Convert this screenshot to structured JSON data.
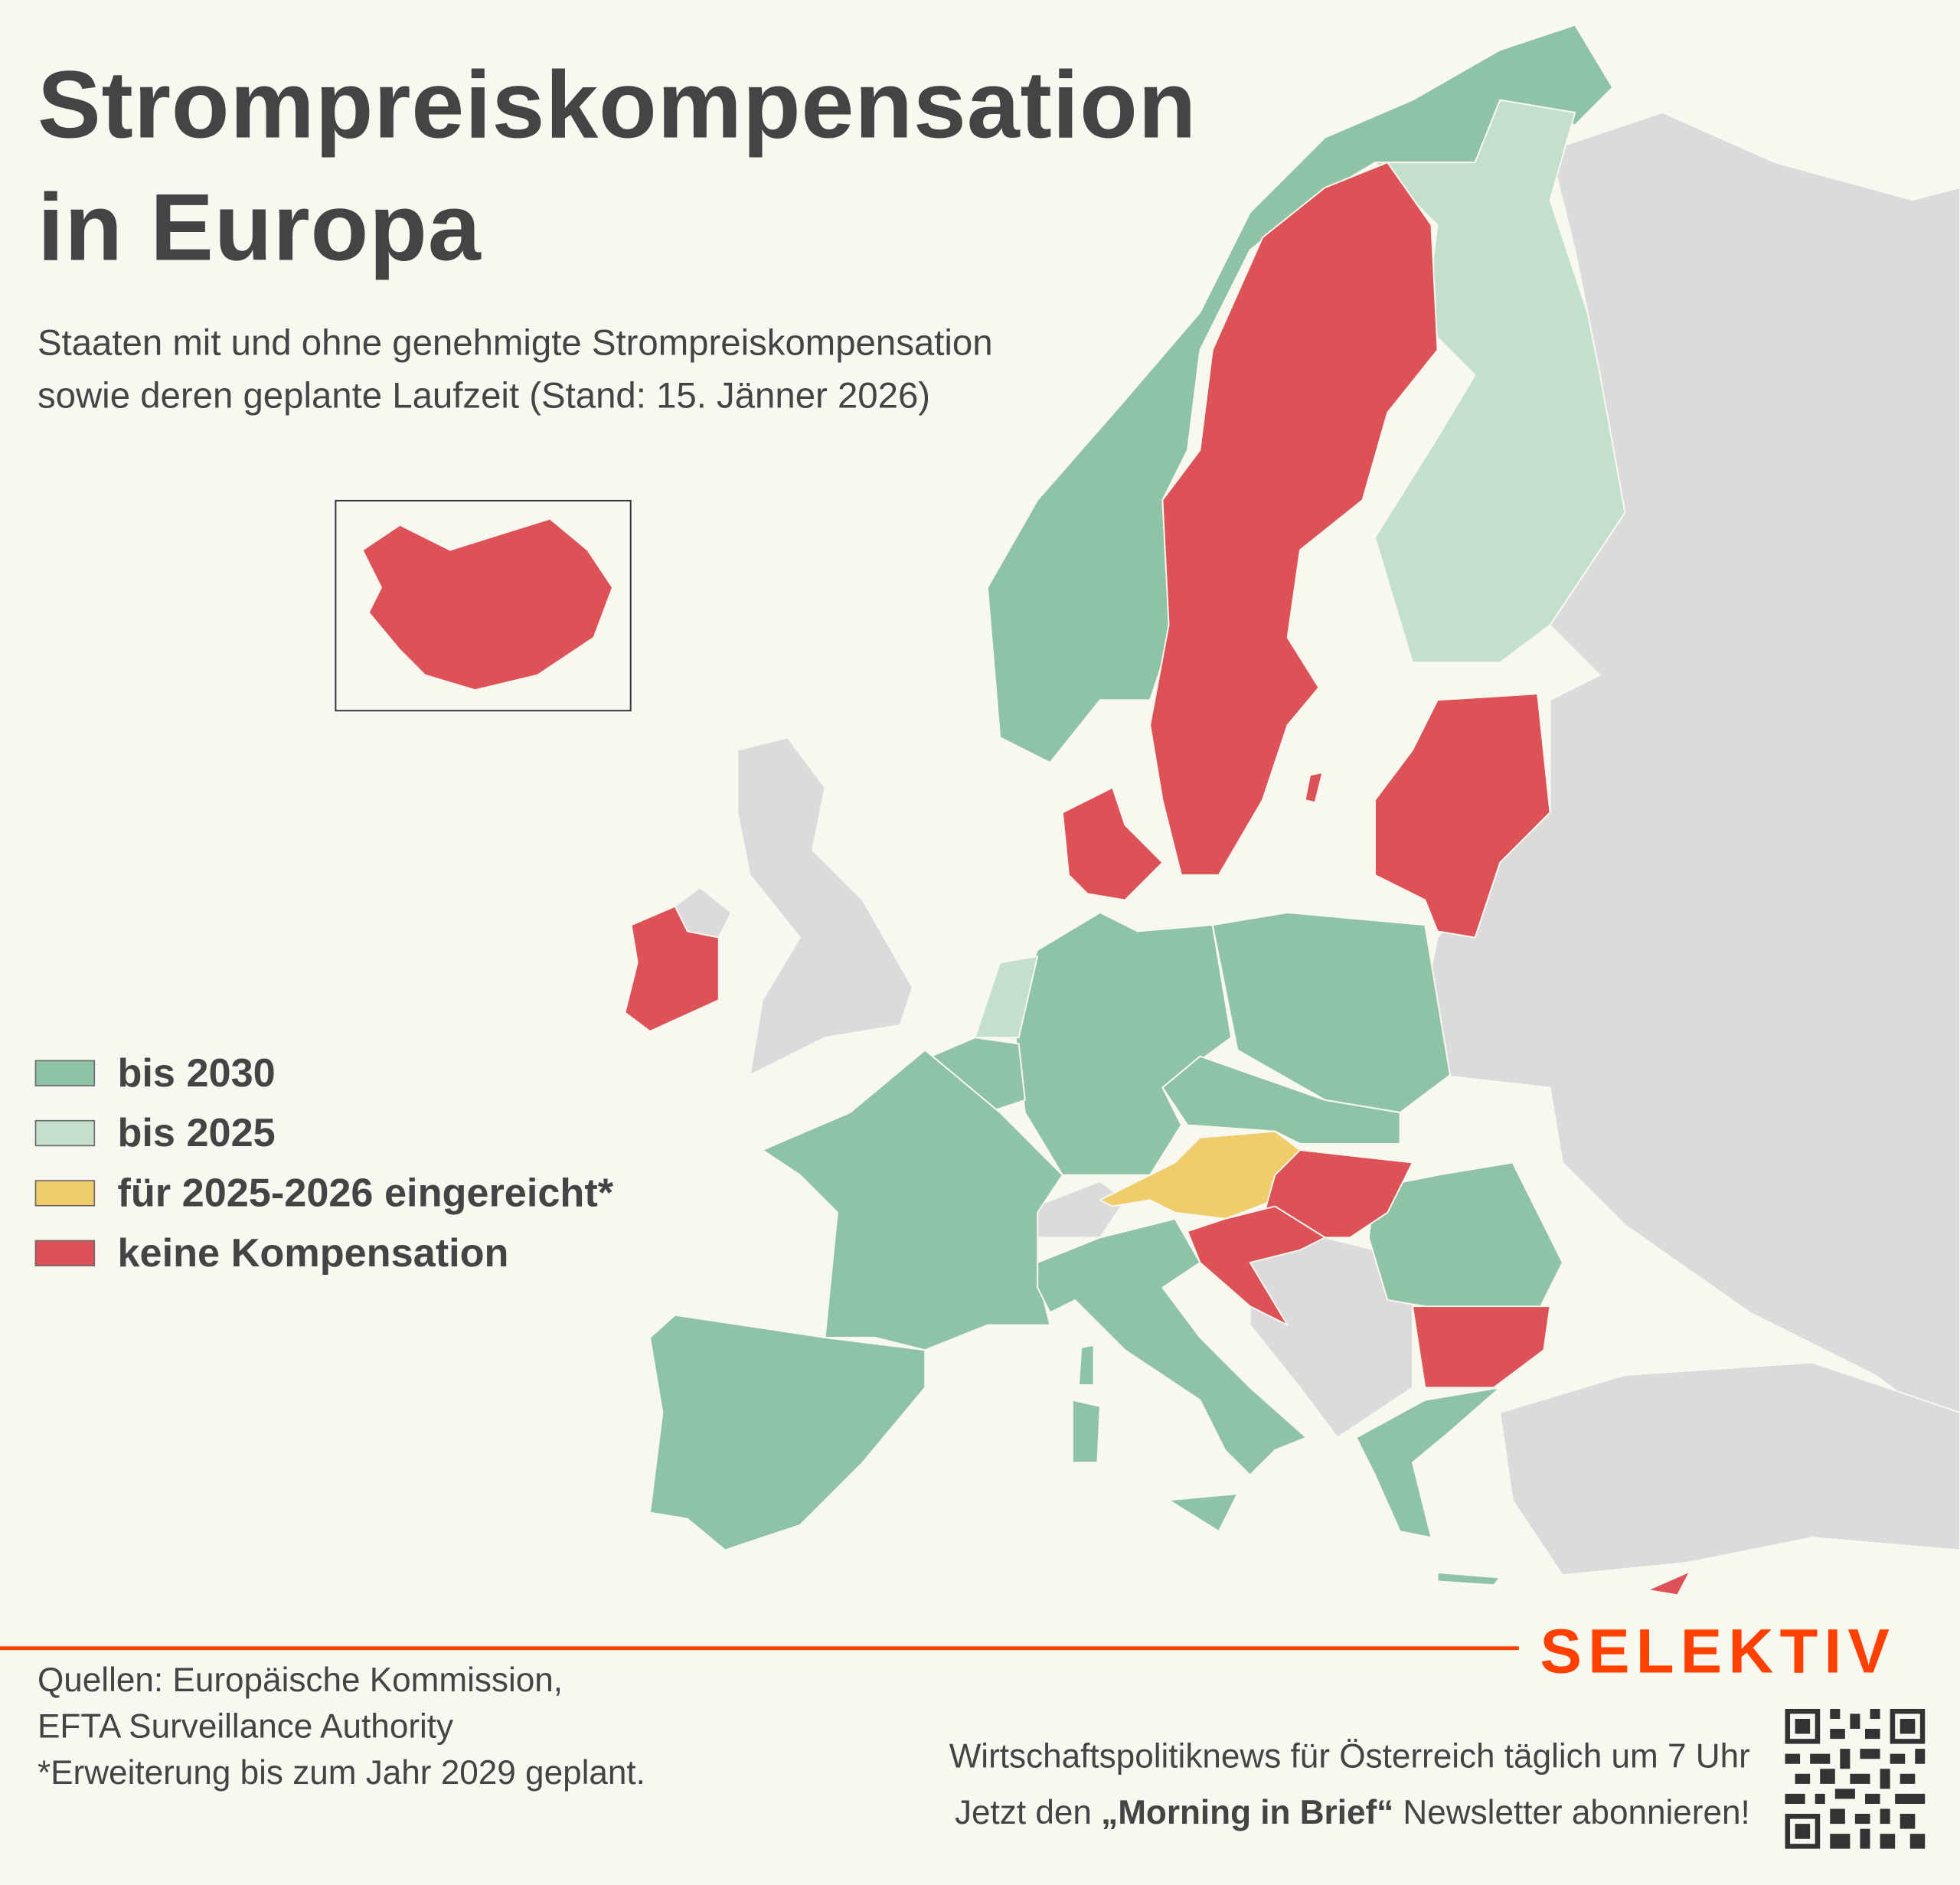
{
  "header": {
    "title_line1": "Strompreiskompensation",
    "title_line2": "in Europa",
    "subtitle_line1": "Staaten mit und ohne genehmigte Strompreiskompensation",
    "subtitle_line2": "sowie deren geplante Laufzeit (Stand: 15. Jänner 2026)"
  },
  "legend": [
    {
      "label": "bis 2030",
      "color": "#8fc3a8"
    },
    {
      "label": "bis 2025",
      "color": "#c3e0cf"
    },
    {
      "label": "für 2025-2026 eingereicht*",
      "color": "#f0cc6a"
    },
    {
      "label": "keine Kompensation",
      "color": "#dc5256"
    }
  ],
  "map": {
    "no_data_color": "#dcdada",
    "background": "#f8f7f0"
  },
  "footer": {
    "brand": "SELEKTIV",
    "brand_color": "#ff4000",
    "sources_line1": "Quellen: Europäische Kommission,",
    "sources_line2": "EFTA Surveillance Authority",
    "footnote": "*Erweiterung bis zum Jahr 2029 geplant.",
    "promo_line1": "Wirtschaftspolitiknews für Österreich täglich um 7 Uhr",
    "promo_line2_pre": "Jetzt den ",
    "promo_line2_bold": "„Morning in Brief“",
    "promo_line2_post": " Newsletter abonnieren!",
    "qr_icon": "qr-code"
  }
}
